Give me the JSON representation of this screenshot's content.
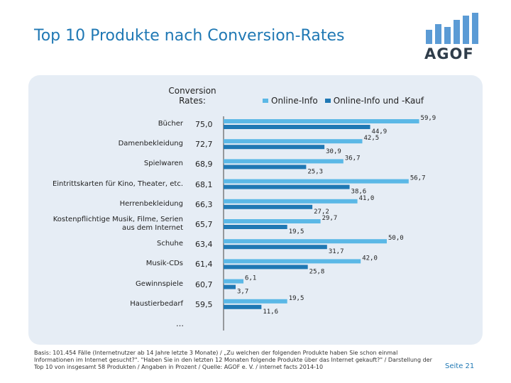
{
  "title": "Top 10 Produkte nach Conversion-Rates",
  "logo": {
    "text": "AGOF",
    "color": "#2f3d4a",
    "bar_color": "#5b9bd5"
  },
  "conversion_header": "Conversion Rates:",
  "footnote": "Basis: 101.454 Fälle (Internetnutzer ab 14 Jahre letzte 3 Monate) / „Zu welchen der folgenden Produkte haben Sie schon einmal Informationen im Internet gesucht?\". \"Haben Sie in den letzten 12 Monaten folgende Produkte über das Internet gekauft?\" / Darstellung der Top 10 von insgesamt 58 Produkten / Angaben in Prozent / Quelle: AGOF e. V. / internet facts 2014-10",
  "page_number": "Seite 21",
  "ellipsis": "…",
  "colors": {
    "series1": "#5bb8e6",
    "series2": "#1f78b4",
    "title": "#1f78b4",
    "panel": "#e6edf5"
  },
  "chart_data": {
    "type": "bar",
    "orientation": "horizontal",
    "categories": [
      "Bücher",
      "Damenbekleidung",
      "Spielwaren",
      "Eintrittskarten für Kino, Theater, etc.",
      "Herrenbekleidung",
      "Kostenpflichtige Musik, Filme, Serien aus dem Internet",
      "Schuhe",
      "Musik-CDs",
      "Gewinnspiele",
      "Haustierbedarf"
    ],
    "conversion_rates": [
      "75,0",
      "72,7",
      "68,9",
      "68,1",
      "66,3",
      "65,7",
      "63,4",
      "61,4",
      "60,7",
      "59,5"
    ],
    "series": [
      {
        "name": "Online-Info",
        "values": [
          59.9,
          42.5,
          36.7,
          56.7,
          41.0,
          29.7,
          50.0,
          42.0,
          6.1,
          19.5
        ],
        "labels": [
          "59,9",
          "42,5",
          "36,7",
          "56,7",
          "41,0",
          "29,7",
          "50,0",
          "42,0",
          "6,1",
          "19,5"
        ]
      },
      {
        "name": "Online-Info und -Kauf",
        "values": [
          44.9,
          30.9,
          25.3,
          38.6,
          27.2,
          19.5,
          31.7,
          25.8,
          3.7,
          11.6
        ],
        "labels": [
          "44,9",
          "30,9",
          "25,3",
          "38,6",
          "27,2",
          "19,5",
          "31,7",
          "25,8",
          "3,7",
          "11,6"
        ]
      }
    ],
    "xlim": [
      0,
      70
    ],
    "grid": false,
    "legend": "top"
  }
}
